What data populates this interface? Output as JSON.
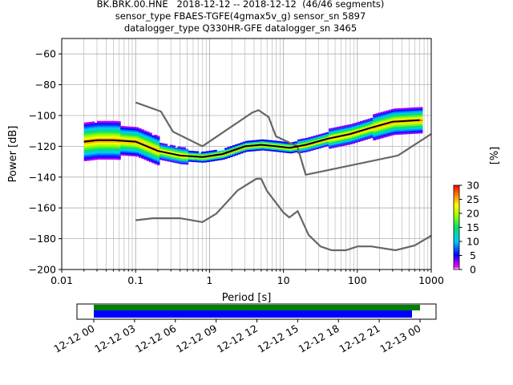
{
  "title_lines": [
    "BK.BRK.00.HNE   2018-12-12 -- 2018-12-12  (46/46 segments)",
    "sensor_type FBAES-TGFE(4gmax5v_g) sensor_sn 5897",
    "datalogger_type Q330HR-GFE datalogger_sn 3465"
  ],
  "colors": {
    "noise_model": "#666666",
    "mode_line": "#000000",
    "grid": "#b0b0b0",
    "coverage_top": "#008000",
    "coverage_bottom": "#0000ff"
  },
  "chart_data": [
    {
      "type": "heatmap",
      "xlabel": "Period [s]",
      "ylabel": "Power [dB]",
      "x_scale": "log",
      "xlim": [
        0.01,
        1000
      ],
      "ylim": [
        -200,
        -50
      ],
      "x_ticks": [
        "0.01",
        "0.1",
        "1",
        "10",
        "100",
        "1000"
      ],
      "y_ticks": [
        "−60",
        "−80",
        "−100",
        "−120",
        "−140",
        "−160",
        "−180",
        "−200"
      ],
      "grid": true,
      "colorbar": {
        "label": "[%]",
        "range": [
          0,
          30
        ],
        "ticks": [
          "0",
          "5",
          "10",
          "15",
          "20",
          "25",
          "30"
        ]
      },
      "mode_line": {
        "x": [
          0.02,
          0.03,
          0.05,
          0.1,
          0.2,
          0.4,
          0.8,
          1.5,
          3,
          5,
          8,
          12,
          20,
          40,
          80,
          150,
          300,
          700
        ],
        "y": [
          -117,
          -116,
          -116,
          -117,
          -123,
          -126,
          -127,
          -125,
          -120,
          -119,
          -120,
          -121,
          -119,
          -115,
          -112,
          -108,
          -104,
          -103
        ]
      },
      "noise_model_high": {
        "x": [
          0.1,
          0.22,
          0.32,
          0.8,
          3.8,
          4.6,
          6.3,
          7.9,
          15.4,
          20,
          354.8,
          1000
        ],
        "y": [
          -91.5,
          -97.4,
          -110.5,
          -120,
          -98,
          -96.5,
          -101,
          -113.5,
          -120,
          -138.5,
          -126,
          -112
        ]
      },
      "noise_model_low": {
        "x": [
          0.1,
          0.17,
          0.4,
          0.8,
          1.24,
          2.4,
          4.3,
          5,
          6,
          10,
          12,
          15.6,
          21.9,
          31.6,
          45,
          70,
          101,
          154,
          328,
          600,
          1000
        ],
        "y": [
          -168,
          -166.7,
          -166.7,
          -169.2,
          -163.7,
          -148.6,
          -141.1,
          -141.1,
          -149,
          -163,
          -166.2,
          -162.1,
          -177.5,
          -185,
          -187.5,
          -187.5,
          -185,
          -185,
          -187.5,
          -184.4,
          -178
        ]
      }
    },
    {
      "type": "timeline",
      "series": [
        {
          "start": "12-12 00",
          "end": "12-13 00"
        },
        {
          "start": "12-12 00",
          "end": "12-13 00"
        }
      ],
      "x_ticks": [
        "12-12 00",
        "12-12 03",
        "12-12 06",
        "12-12 09",
        "12-12 12",
        "12-12 15",
        "12-12 18",
        "12-12 21",
        "12-13 00"
      ]
    }
  ]
}
